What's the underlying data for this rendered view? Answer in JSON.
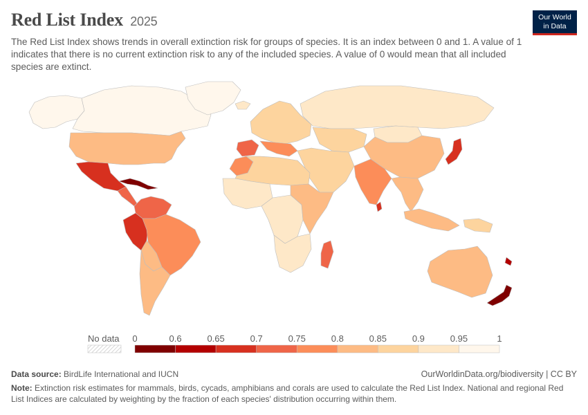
{
  "header": {
    "title": "Red List Index",
    "year": "2025",
    "subtitle": "The Red List Index shows trends in overall extinction risk for groups of species. It is an index between 0 and 1. A value of 1 indicates that there is no current extinction risk to any of the included species. A value of 0 would mean that all included species are extinct."
  },
  "logo": {
    "line1": "Our World",
    "line2": "in Data",
    "bg_color": "#002147",
    "accent_color": "#ce261e"
  },
  "legend": {
    "no_data_label": "No data",
    "ticks": [
      "0",
      "0.6",
      "0.65",
      "0.7",
      "0.75",
      "0.8",
      "0.85",
      "0.9",
      "0.95",
      "1"
    ],
    "colors": [
      "#7f0000",
      "#b30000",
      "#d7301f",
      "#ef6548",
      "#fc8d59",
      "#fdbb84",
      "#fdd49e",
      "#fee8c8",
      "#fff7ec"
    ]
  },
  "footer": {
    "source_label": "Data source:",
    "source_value": "BirdLife International and IUCN",
    "credit": "OurWorldinData.org/biodiversity | CC BY",
    "note_label": "Note:",
    "note_value": "Extinction risk estimates for mammals, birds, cycads, amphibians and corals are used to calculate the Red List Index. National and regional Red List Indices are calculated by weighting by the fraction of each species' distribution occurring within them."
  },
  "regions": [
    {
      "id": "canada",
      "value": 0.98
    },
    {
      "id": "alaska",
      "value": 0.98
    },
    {
      "id": "greenland",
      "value": 0.99
    },
    {
      "id": "usa",
      "value": 0.84
    },
    {
      "id": "mexico",
      "value": 0.67
    },
    {
      "id": "central-america",
      "value": 0.72
    },
    {
      "id": "caribbean",
      "value": 0.6
    },
    {
      "id": "colombia-venezuela",
      "value": 0.72
    },
    {
      "id": "peru-ecuador",
      "value": 0.69
    },
    {
      "id": "brazil",
      "value": 0.78
    },
    {
      "id": "bolivia-paraguay",
      "value": 0.82
    },
    {
      "id": "chile-argentina",
      "value": 0.84
    },
    {
      "id": "iceland",
      "value": 0.95
    },
    {
      "id": "europe",
      "value": 0.9
    },
    {
      "id": "iberia",
      "value": 0.74
    },
    {
      "id": "italy-balkans",
      "value": 0.77
    },
    {
      "id": "russia",
      "value": 0.93
    },
    {
      "id": "kazakhstan-central-asia",
      "value": 0.88
    },
    {
      "id": "middle-east",
      "value": 0.86
    },
    {
      "id": "north-africa",
      "value": 0.88
    },
    {
      "id": "morocco",
      "value": 0.76
    },
    {
      "id": "west-africa",
      "value": 0.92
    },
    {
      "id": "central-africa",
      "value": 0.95
    },
    {
      "id": "east-africa",
      "value": 0.82
    },
    {
      "id": "southern-africa",
      "value": 0.93
    },
    {
      "id": "madagascar",
      "value": 0.72
    },
    {
      "id": "india",
      "value": 0.79
    },
    {
      "id": "sri-lanka",
      "value": 0.66
    },
    {
      "id": "china",
      "value": 0.85
    },
    {
      "id": "mongolia",
      "value": 0.95
    },
    {
      "id": "southeast-asia",
      "value": 0.81
    },
    {
      "id": "japan",
      "value": 0.7
    },
    {
      "id": "indonesia",
      "value": 0.83
    },
    {
      "id": "papua",
      "value": 0.9
    },
    {
      "id": "australia",
      "value": 0.84
    },
    {
      "id": "new-zealand",
      "value": 0.6
    },
    {
      "id": "new-caledonia",
      "value": 0.62
    }
  ]
}
